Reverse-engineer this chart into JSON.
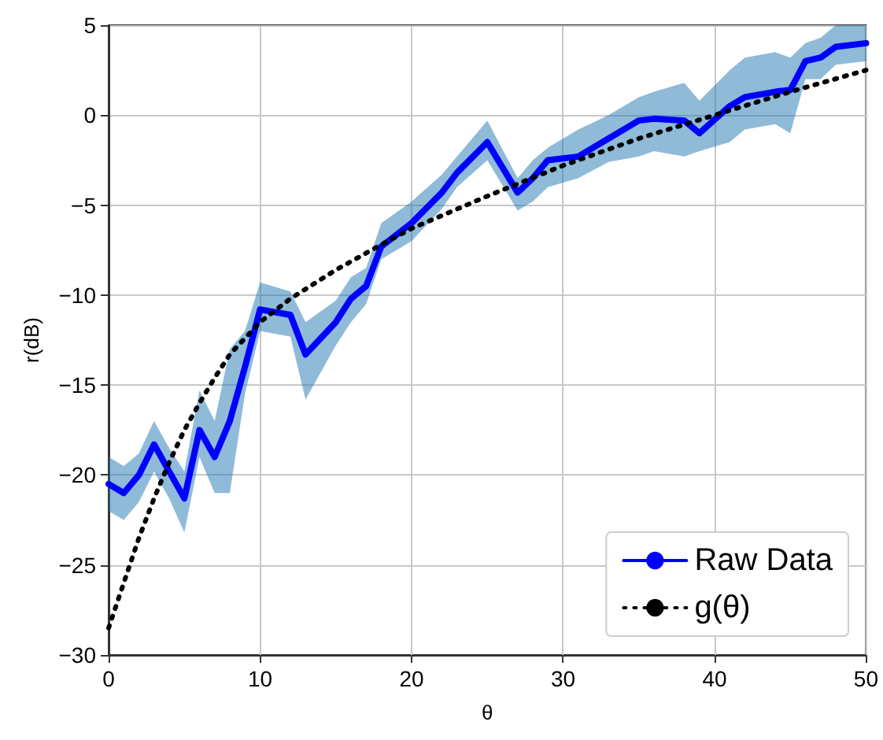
{
  "chart_data": {
    "type": "line",
    "xlabel": "θ",
    "ylabel": "r(dB)",
    "xlim": [
      0,
      50
    ],
    "xticks": [
      0,
      10,
      20,
      30,
      40,
      50
    ],
    "ylim": [
      -30,
      5
    ],
    "yticks": [
      -30,
      -25,
      -20,
      -15,
      -10,
      -5,
      0,
      5
    ],
    "grid": true,
    "legend": "bottom right",
    "marker": "none",
    "series": [
      {
        "name": "Raw Data",
        "color": "#0000ff",
        "line_style": "solid",
        "x": [
          0,
          1,
          2,
          3,
          4,
          5,
          6,
          7,
          8,
          9,
          10,
          12,
          13,
          15,
          16,
          17,
          18,
          20,
          22,
          23,
          25,
          27,
          28,
          29,
          31,
          33,
          35,
          36,
          38,
          39,
          41,
          42,
          44,
          45,
          46,
          47,
          48,
          50
        ],
        "values": [
          -20.5,
          -21,
          -20,
          -18.3,
          -19.8,
          -21.3,
          -17.5,
          -19,
          -17,
          -14,
          -10.8,
          -11.1,
          -13.3,
          -11.5,
          -10.2,
          -9.5,
          -7.3,
          -6,
          -4.3,
          -3.2,
          -1.5,
          -4.3,
          -3.5,
          -2.5,
          -2.3,
          -1.3,
          -0.3,
          -0.2,
          -0.3,
          -1,
          0.5,
          1,
          1.3,
          1.4,
          3,
          3.2,
          3.8,
          4
        ],
        "lower": [
          -22,
          -22.5,
          -21.5,
          -19.8,
          -21.3,
          -23.2,
          -19,
          -21,
          -21,
          -15.5,
          -12,
          -12.3,
          -15.8,
          -12.8,
          -11.5,
          -10.5,
          -8,
          -7,
          -5.2,
          -4,
          -2.5,
          -5.3,
          -4.8,
          -4,
          -3.5,
          -2.6,
          -2.3,
          -2,
          -2.3,
          -2,
          -1.5,
          -0.8,
          -0.5,
          -1,
          2,
          2,
          2.8,
          3
        ],
        "upper": [
          -19,
          -19.5,
          -18.8,
          -17,
          -18.5,
          -19.8,
          -15.3,
          -17,
          -13,
          -12,
          -9.3,
          -9.8,
          -11.5,
          -10.3,
          -9,
          -8.5,
          -6,
          -4.8,
          -3.3,
          -2.3,
          -0.3,
          -3.5,
          -2.5,
          -1.8,
          -0.8,
          0,
          1,
          1.3,
          1.8,
          0.8,
          2.5,
          3.2,
          3.5,
          3.2,
          4,
          4.3,
          5,
          5
        ]
      },
      {
        "name": "g(θ)",
        "color": "#000000",
        "line_style": "dotted",
        "x": [
          0,
          1,
          2,
          3,
          4,
          5,
          6,
          7,
          8,
          10,
          12,
          15,
          18,
          20,
          25,
          30,
          35,
          40,
          45,
          50
        ],
        "values": [
          -28.5,
          -26,
          -23.5,
          -21.3,
          -19.3,
          -17.5,
          -16,
          -14.6,
          -13.3,
          -11.5,
          -10.2,
          -8.6,
          -7.2,
          -6.3,
          -4.5,
          -2.8,
          -1.3,
          0,
          1.3,
          2.5
        ]
      }
    ]
  }
}
